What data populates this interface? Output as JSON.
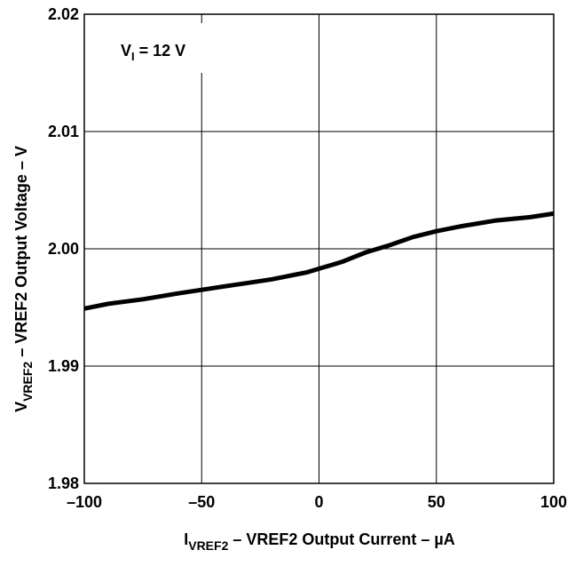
{
  "colors": {
    "line": "#000000",
    "grid": "#000000",
    "background": "#ffffff"
  },
  "chart_data": {
    "type": "line",
    "title": "",
    "annotation": {
      "base": "V",
      "sub": "I",
      "rest": " = 12 V"
    },
    "xlabel": {
      "base": "I",
      "sub": "VREF2",
      "rest": " – VREF2 Output Current –  µA"
    },
    "ylabel": {
      "base": "V",
      "sub": "VREF2",
      "rest": " – VREF2 Output Voltage – V"
    },
    "xlim": [
      -100,
      100
    ],
    "ylim": [
      1.98,
      2.02
    ],
    "x_ticks": [
      -100,
      -50,
      0,
      50,
      100
    ],
    "x_tick_labels": [
      "–100",
      "–50",
      "0",
      "50",
      "100"
    ],
    "y_ticks": [
      1.98,
      1.99,
      2.0,
      2.01,
      2.02
    ],
    "y_tick_labels": [
      "1.98",
      "1.99",
      "2.00",
      "2.01",
      "2.02"
    ],
    "grid": true,
    "series": [
      {
        "x": [
          -100,
          -90,
          -75,
          -60,
          -50,
          -40,
          -30,
          -20,
          -15,
          -10,
          -5,
          0,
          5,
          10,
          15,
          20,
          30,
          40,
          50,
          60,
          75,
          90,
          100
        ],
        "y": [
          1.9949,
          1.9953,
          1.9957,
          1.9962,
          1.9965,
          1.9968,
          1.9971,
          1.9974,
          1.9976,
          1.9978,
          1.998,
          1.9983,
          1.9986,
          1.9989,
          1.9993,
          1.9997,
          2.0003,
          2.001,
          2.0015,
          2.0019,
          2.0024,
          2.0027,
          2.003
        ]
      }
    ]
  }
}
